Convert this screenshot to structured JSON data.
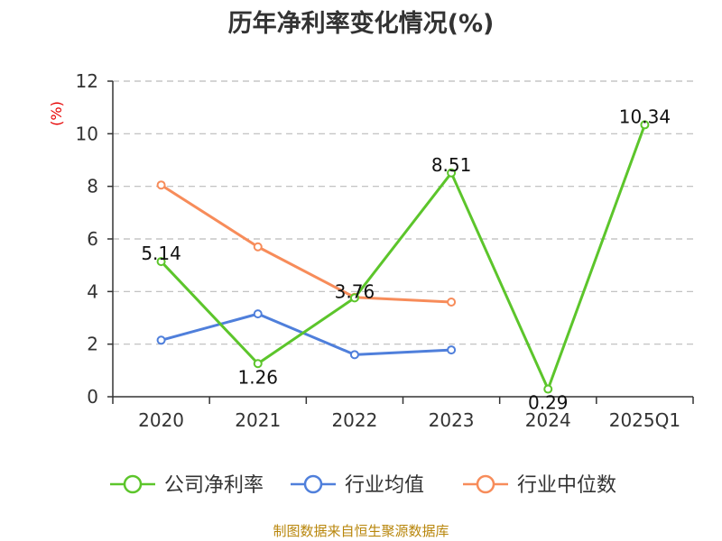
{
  "chart_data": {
    "type": "line",
    "title": "历年净利率变化情况(%)",
    "ylabel": "(%)",
    "ylim": [
      0,
      12
    ],
    "yticks": [
      0,
      2,
      4,
      6,
      8,
      10,
      12
    ],
    "grid": true,
    "legend_position": "bottom",
    "categories": [
      "2020",
      "2021",
      "2022",
      "2023",
      "2024",
      "2025Q1"
    ],
    "series": [
      {
        "name": "公司净利率",
        "color": "#5cc52b",
        "values": [
          5.14,
          1.26,
          3.76,
          8.51,
          0.29,
          10.34
        ],
        "labels": [
          "5.14",
          "1.26",
          "3.76",
          "8.51",
          "0.29",
          "10.34"
        ]
      },
      {
        "name": "行业均值",
        "color": "#4f7fdb",
        "values": [
          2.15,
          3.15,
          1.6,
          1.78,
          null,
          null
        ]
      },
      {
        "name": "行业中位数",
        "color": "#f78c5a",
        "values": [
          8.05,
          5.7,
          3.78,
          3.6,
          null,
          null
        ]
      }
    ]
  },
  "source": "制图数据来自恒生聚源数据库"
}
